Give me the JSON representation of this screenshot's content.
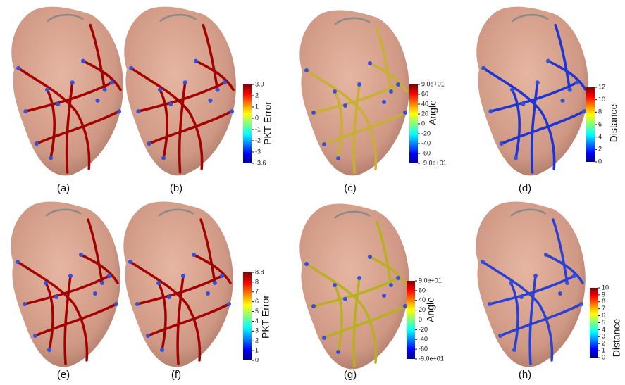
{
  "panels": [
    {
      "label": "(a)"
    },
    {
      "label": "(b)"
    },
    {
      "label": "(c)"
    },
    {
      "label": "(d)"
    },
    {
      "label": "(e)"
    },
    {
      "label": "(f)"
    },
    {
      "label": "(g)"
    },
    {
      "label": "(h)"
    }
  ],
  "colorbars": [
    {
      "title": "PKT Error",
      "ticks": [
        "3.0",
        "2",
        "1",
        "0",
        "-1",
        "-2",
        "-3",
        "-3.6"
      ]
    },
    {
      "title": "Angle",
      "ticks": [
        "9.0e+01",
        "60",
        "40",
        "20",
        "0",
        "-20",
        "-40",
        "-60",
        "-9.0e+01"
      ]
    },
    {
      "title": "Distance",
      "ticks": [
        "12",
        "10",
        "8",
        "6",
        "4",
        "2",
        "0"
      ]
    },
    {
      "title": "PKT Error",
      "ticks": [
        "8.8",
        "8",
        "7",
        "6",
        "5",
        "4",
        "3",
        "2",
        "1",
        "0"
      ]
    },
    {
      "title": "Angle",
      "ticks": [
        "9.0e+01",
        "60",
        "40",
        "20",
        "0",
        "-20",
        "-40",
        "-60",
        "-9.0e+01"
      ]
    },
    {
      "title": "Distance",
      "ticks": [
        "10",
        "9",
        "8",
        "7",
        "6",
        "5",
        "4",
        "3",
        "2",
        "1",
        "0"
      ]
    }
  ]
}
